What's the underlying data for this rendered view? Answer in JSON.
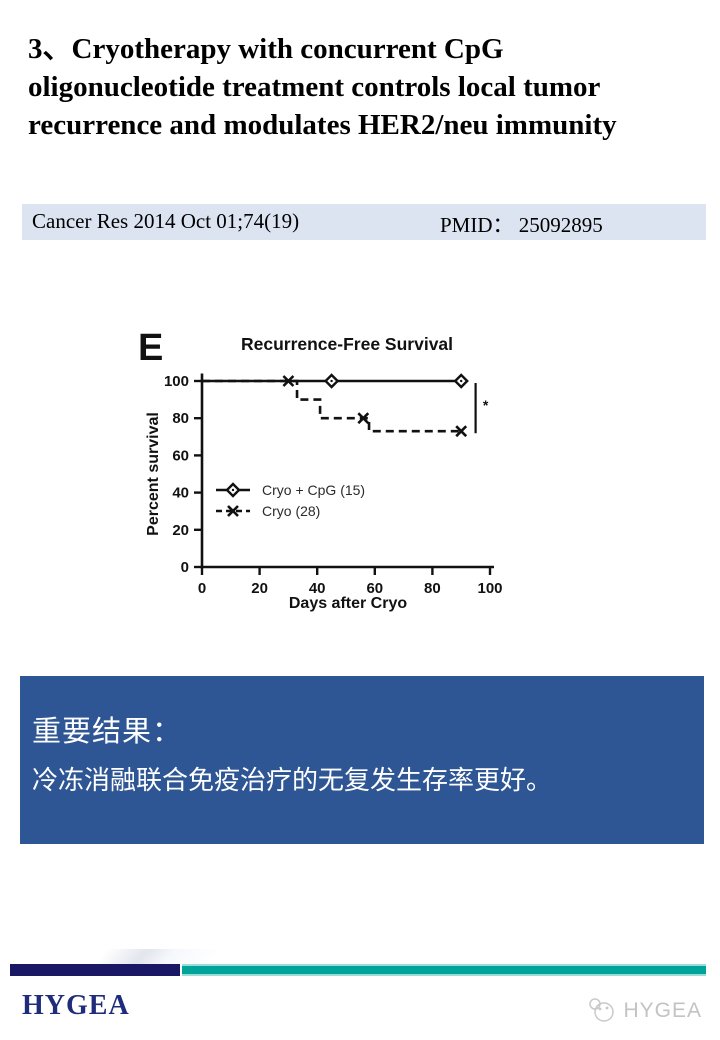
{
  "slide": {
    "title_lines": [
      "3、Cryotherapy with concurrent CpG",
      "oligonucleotide treatment controls local tumor",
      "recurrence and modulates HER2/neu immunity"
    ],
    "citation": {
      "journal": "Cancer Res 2014 Oct 01;74(19)",
      "pmid": "PMID： 25092895"
    },
    "result_box": {
      "heading": "重要结果：",
      "body": "冷冻消融联合免疫治疗的无复发生存率更好。"
    },
    "footer": {
      "logo_text": "HYGEA",
      "watermark_text": "HYGEA"
    },
    "colors": {
      "result_box_bg": "#2e5694",
      "citation_bg": "#dce4f2",
      "footer_navy": "#1a1764",
      "footer_teal": "#00a39a",
      "logo_navy": "#1f2c7b",
      "watermark_gray": "#c3c3c3",
      "chart_ink": "#111111"
    }
  },
  "chart_data": {
    "type": "line",
    "subtype": "kaplan-meier-step",
    "panel_label": "E",
    "title": "Recurrence-Free Survival",
    "xlabel": "Days after Cryo",
    "ylabel": "Percent survival",
    "xlim": [
      0,
      100
    ],
    "ylim": [
      0,
      100
    ],
    "xticks": [
      0,
      20,
      40,
      60,
      80,
      100
    ],
    "yticks": [
      0,
      20,
      40,
      60,
      80,
      100
    ],
    "grid": false,
    "legend_position": "inside-left-middle",
    "series": [
      {
        "name": "Cryo + CpG (15)",
        "line_style": "solid",
        "marker": "diamond",
        "step_points": [
          [
            0,
            100
          ],
          [
            90,
            100
          ]
        ],
        "marker_points": [
          [
            45,
            100
          ],
          [
            90,
            100
          ]
        ]
      },
      {
        "name": "Cryo (28)",
        "line_style": "dashed",
        "marker": "x",
        "step_points": [
          [
            0,
            100
          ],
          [
            33,
            100
          ],
          [
            33,
            90
          ],
          [
            41,
            90
          ],
          [
            41,
            80
          ],
          [
            58,
            80
          ],
          [
            58,
            73
          ],
          [
            90,
            73
          ]
        ],
        "marker_points": [
          [
            30,
            100
          ],
          [
            56,
            80
          ],
          [
            90,
            73
          ]
        ]
      }
    ],
    "significance": {
      "label": "*",
      "x": 95,
      "y_bottom": 73,
      "y_top": 100
    }
  }
}
